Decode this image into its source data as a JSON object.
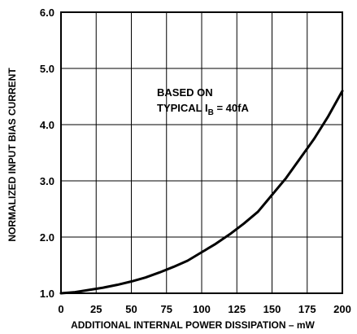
{
  "chart_data": {
    "type": "line",
    "title": "",
    "xlabel": "ADDITIONAL INTERNAL POWER DISSIPATION – mW",
    "ylabel": "NORMALIZED INPUT BIAS CURRENT",
    "xlim": [
      0,
      200
    ],
    "ylim": [
      1.0,
      6.0
    ],
    "x_ticks": [
      0,
      25,
      50,
      75,
      100,
      125,
      150,
      175,
      200
    ],
    "x_tick_labels": [
      "0",
      "25",
      "50",
      "75",
      "100",
      "125",
      "150",
      "175",
      "200"
    ],
    "y_ticks": [
      1.0,
      2.0,
      3.0,
      4.0,
      5.0,
      6.0
    ],
    "y_tick_labels": [
      "1.0",
      "2.0",
      "3.0",
      "4.0",
      "5.0",
      "6.0"
    ],
    "grid": true,
    "series": [
      {
        "x": [
          0,
          10,
          20,
          30,
          40,
          50,
          60,
          70,
          80,
          90,
          100,
          110,
          120,
          130,
          140,
          150,
          160,
          170,
          180,
          190,
          200
        ],
        "values": [
          1.0,
          1.02,
          1.06,
          1.1,
          1.15,
          1.21,
          1.28,
          1.37,
          1.47,
          1.58,
          1.73,
          1.88,
          2.05,
          2.24,
          2.45,
          2.75,
          3.05,
          3.4,
          3.75,
          4.15,
          4.6
        ]
      }
    ],
    "annotation": {
      "line1": "BASED ON",
      "line2_prefix": "TYPICAL I",
      "line2_subscript": "B",
      "line2_suffix": " = 40fA"
    }
  }
}
